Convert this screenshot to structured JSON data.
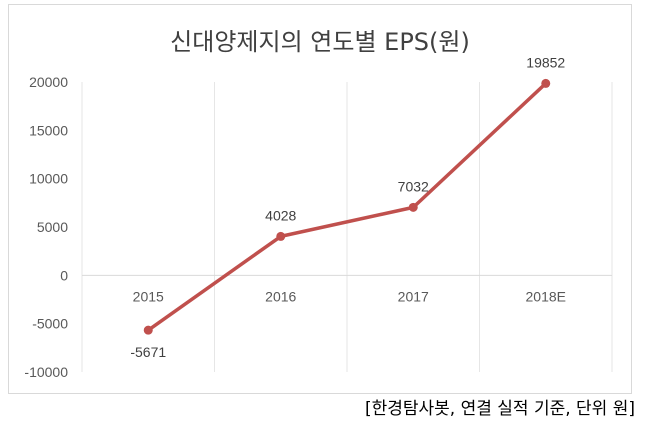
{
  "chart_data": {
    "type": "line",
    "title": "신대양제지의 연도별 EPS(원)",
    "categories": [
      "2015",
      "2016",
      "2017",
      "2018E"
    ],
    "series": [
      {
        "values": [
          -5671,
          4028,
          7032,
          19852
        ]
      }
    ],
    "data_labels": [
      "-5671",
      "4028",
      "7032",
      "19852"
    ],
    "ylim": [
      -10000,
      20000
    ],
    "yticks": [
      20000,
      15000,
      10000,
      5000,
      0,
      -5000,
      -10000
    ],
    "ytick_labels": [
      "20000",
      "15000",
      "10000",
      "5000",
      "0",
      "-5000",
      "-10000"
    ],
    "grid": "vertical",
    "legend": "none",
    "line_color": "#c0504d"
  },
  "source_note": "[한경탐사봇, 연결 실적 기준, 단위 원]"
}
